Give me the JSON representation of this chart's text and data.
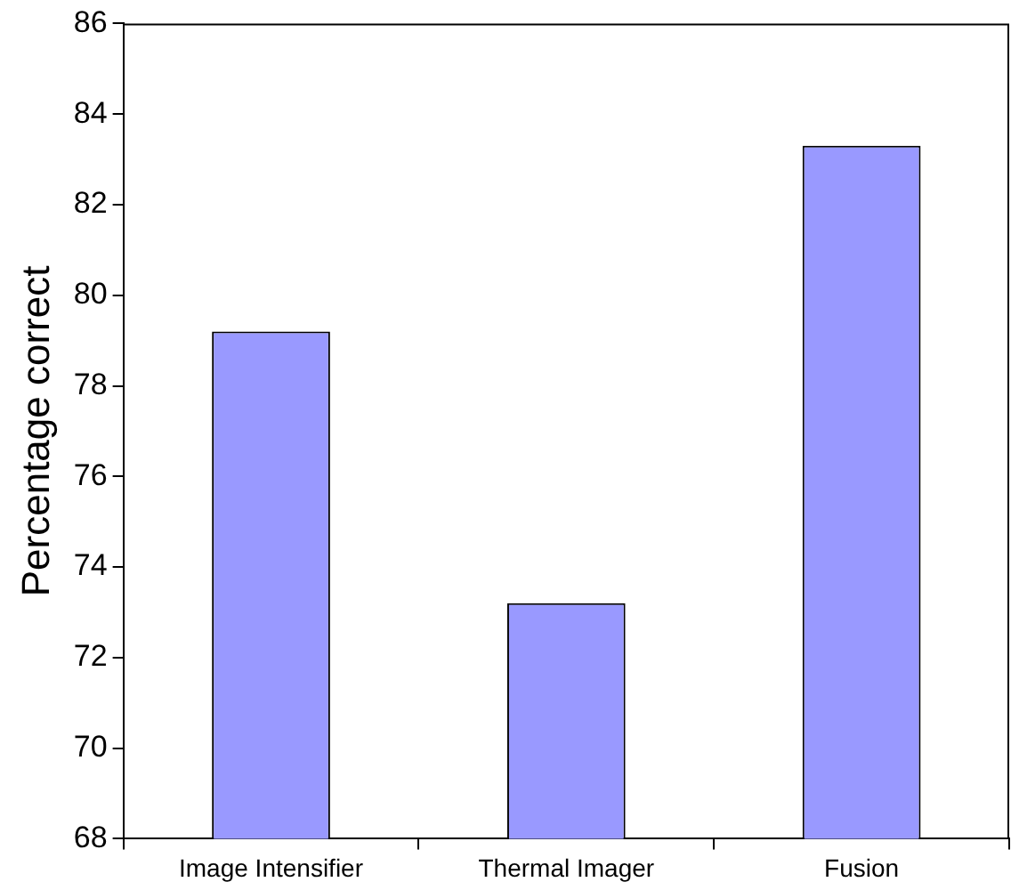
{
  "chart_data": {
    "type": "bar",
    "ylabel": "Percentage correct",
    "categories": [
      "Image Intensifier",
      "Thermal Imager",
      "Fusion"
    ],
    "values": [
      79.2,
      73.2,
      83.3
    ],
    "color": "#9999ff",
    "ylim": [
      68,
      86
    ],
    "yticks": [
      68,
      70,
      72,
      74,
      76,
      78,
      80,
      82,
      84,
      86
    ],
    "grid": false,
    "legend": false
  }
}
